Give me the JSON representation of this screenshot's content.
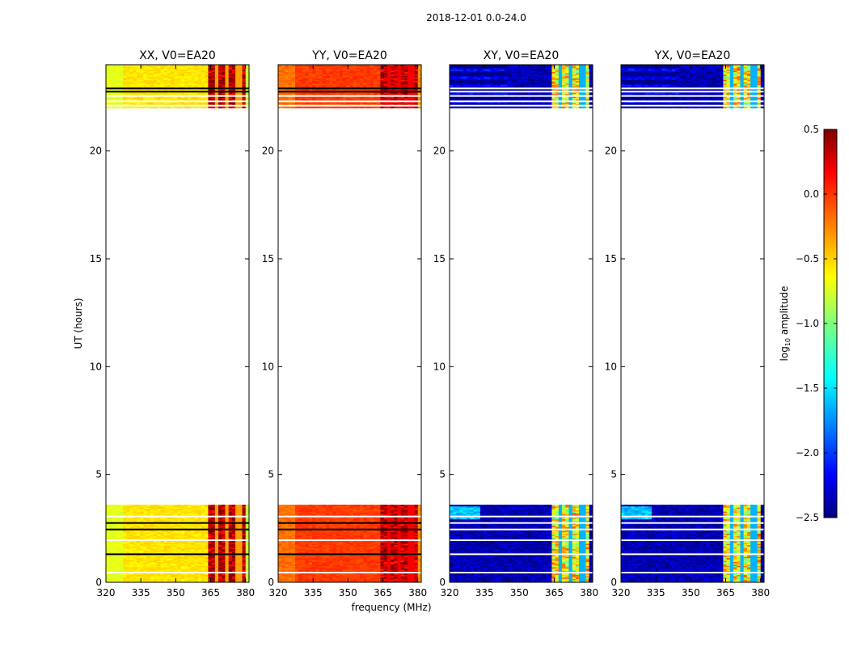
{
  "chart_data": {
    "type": "heatmap",
    "suptitle": "2018-12-01 0.0-24.0",
    "xlabel": "frequency (MHz)",
    "ylabel": "UT (hours)",
    "xlim": [
      320,
      381.5
    ],
    "ylim": [
      0,
      24
    ],
    "xticks": [
      "320",
      "335",
      "350",
      "365",
      "380"
    ],
    "yticks": [
      "0",
      "5",
      "10",
      "15",
      "20"
    ],
    "observed_time_ranges_hours": [
      [
        0,
        3.6
      ],
      [
        22.0,
        24.0
      ]
    ],
    "flagged_rows_hours": [
      0.45,
      1.3,
      1.95,
      2.45,
      2.75,
      3.05,
      22.1,
      22.3,
      22.55,
      22.75,
      22.9
    ],
    "rfi_band_mhz": [
      363.5,
      380.5
    ],
    "rfi_channel_gaps_mhz": [
      367.5,
      372.5,
      377.2
    ],
    "panels": [
      {
        "title": "XX, V0=EA20",
        "typical_log10_amplitude": -0.55,
        "rfi_log10_amplitude": 0.35
      },
      {
        "title": "YY, V0=EA20",
        "typical_log10_amplitude": -0.05,
        "rfi_log10_amplitude": 0.3
      },
      {
        "title": "XY, V0=EA20",
        "typical_log10_amplitude": -2.35,
        "rfi_log10_amplitude": -0.6
      },
      {
        "title": "YX, V0=EA20",
        "typical_log10_amplitude": -2.35,
        "rfi_log10_amplitude": -0.6
      }
    ],
    "colorbar": {
      "label": "log10 amplitude",
      "range": [
        -2.5,
        0.5
      ],
      "ticks": [
        "0.5",
        "0.0",
        "−0.5",
        "−1.0",
        "−1.5",
        "−2.0",
        "−2.5"
      ],
      "colormap": "jet"
    }
  }
}
